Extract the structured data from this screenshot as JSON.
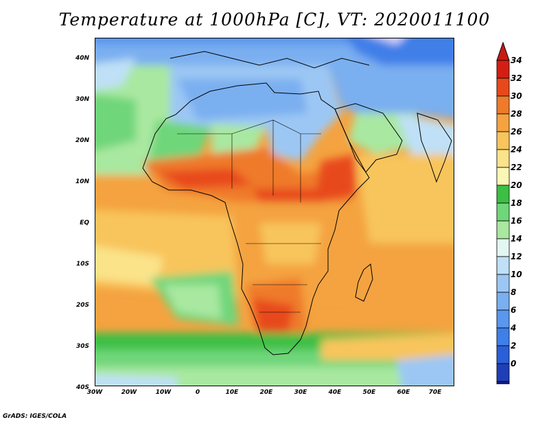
{
  "title": "Temperature at 1000hPa [C], VT: 2020011100",
  "credit": "GrADS: IGES/COLA",
  "lat_ticks": [
    "40N",
    "30N",
    "20N",
    "10N",
    "EQ",
    "10S",
    "20S",
    "30S",
    "40S"
  ],
  "lon_ticks": [
    "30W",
    "20W",
    "10W",
    "0",
    "10E",
    "20E",
    "30E",
    "40E",
    "50E",
    "60E",
    "70E"
  ],
  "colorbar": {
    "labels": [
      "0",
      "2",
      "4",
      "6",
      "8",
      "10",
      "12",
      "14",
      "16",
      "18",
      "20",
      "22",
      "24",
      "26",
      "28",
      "30",
      "32",
      "34"
    ],
    "colors": [
      "#1a1a8c",
      "#1f3fb8",
      "#2a5fd8",
      "#3f7fe8",
      "#5a97ee",
      "#7aaff0",
      "#9cc7f4",
      "#bfe0f7",
      "#e4f6f2",
      "#a9e8a0",
      "#6fd67a",
      "#3cbf44",
      "#fbf7b5",
      "#fbe38a",
      "#f8c55c",
      "#f4a340",
      "#ef7a2a",
      "#e8491c",
      "#d41e14"
    ],
    "under_color": "#e8e6fa",
    "over_color": "#c81a12"
  }
}
